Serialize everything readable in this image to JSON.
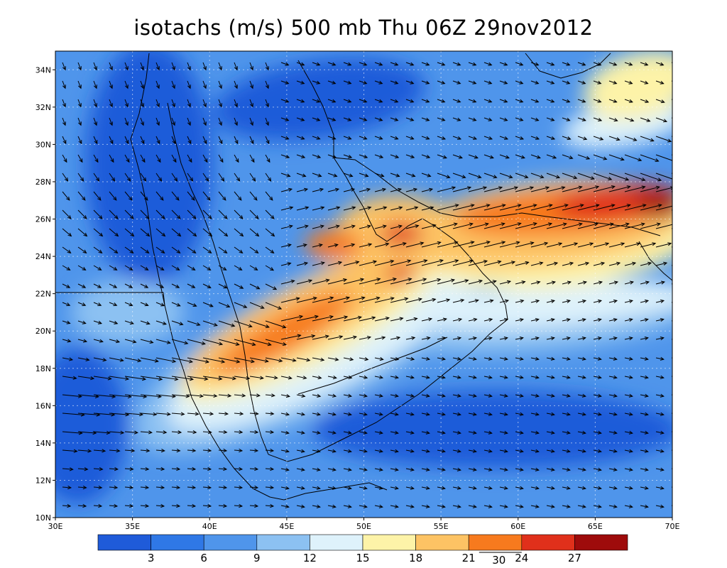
{
  "title": "isotachs (m/s) 500 mb Thu 06Z 29nov2012",
  "map": {
    "lon_range": [
      30,
      70
    ],
    "lat_range": [
      10,
      35
    ],
    "lon_ticks": [
      "30E",
      "35E",
      "40E",
      "45E",
      "50E",
      "55E",
      "60E",
      "65E",
      "70E"
    ],
    "lat_ticks": [
      "10N",
      "12N",
      "14N",
      "16N",
      "18N",
      "20N",
      "22N",
      "24N",
      "26N",
      "28N",
      "30N",
      "32N",
      "34N"
    ],
    "grid": true
  },
  "colorbar": {
    "colors": [
      "#1f5bd9",
      "#2f78e6",
      "#4f95eb",
      "#8cc1f2",
      "#def2fb",
      "#fdf3a8",
      "#fdc364",
      "#f77a1e",
      "#e0301b",
      "#9e0b0b"
    ],
    "labels": [
      "3",
      "6",
      "9",
      "12",
      "15",
      "18",
      "21",
      "24",
      "27"
    ],
    "vector_reference": "30"
  },
  "annotations": {
    "land_boundaries": true,
    "wind_vectors": true
  }
}
